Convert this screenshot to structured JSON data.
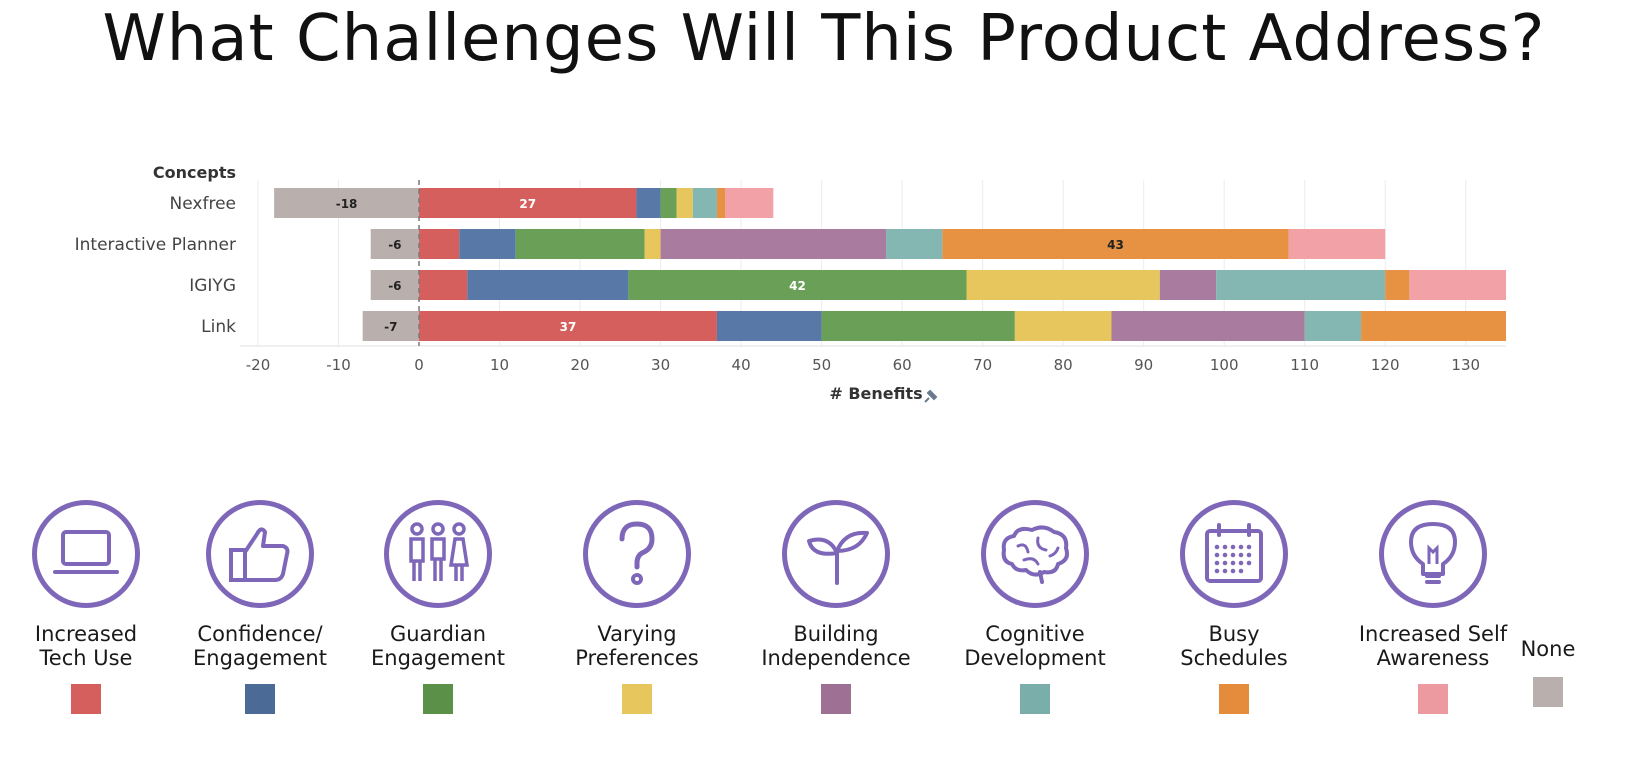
{
  "title": "What Challenges Will This Product Address?",
  "chart_data": {
    "type": "bar",
    "orientation": "horizontal",
    "stacked": true,
    "row_header": "Concepts",
    "xlabel": "# Benefits",
    "xlim": [
      -20,
      135
    ],
    "xticks": [
      -20,
      -10,
      0,
      10,
      20,
      30,
      40,
      50,
      60,
      70,
      80,
      90,
      100,
      110,
      120,
      130
    ],
    "grid": true,
    "categories": [
      "Nexfree",
      "Interactive Planner",
      "IGIYG",
      "Link"
    ],
    "series": [
      {
        "name": "Increased Tech Use",
        "color": "#d45f5c",
        "values": [
          27,
          5,
          6,
          37
        ]
      },
      {
        "name": "Confidence/ Engagement",
        "color": "#5878a8",
        "values": [
          3,
          7,
          20,
          13
        ]
      },
      {
        "name": "Guardian Engagement",
        "color": "#6a9f58",
        "values": [
          2,
          16,
          42,
          24
        ]
      },
      {
        "name": "Varying Preferences",
        "color": "#e8c65e",
        "values": [
          2,
          2,
          24,
          12
        ]
      },
      {
        "name": "Building Independence",
        "color": "#a97b9f",
        "values": [
          0,
          28,
          7,
          24
        ]
      },
      {
        "name": "Cognitive Development",
        "color": "#84b6b2",
        "values": [
          3,
          7,
          21,
          7
        ]
      },
      {
        "name": "Busy Schedules",
        "color": "#e69242",
        "values": [
          1,
          43,
          3,
          18
        ]
      },
      {
        "name": "Increased Self Awareness",
        "color": "#f2a1a6",
        "values": [
          6,
          12,
          12,
          0
        ]
      },
      {
        "name": "None",
        "color": "#b9b0ad",
        "values": [
          -18,
          -6,
          -6,
          -7
        ]
      }
    ],
    "data_labels": [
      {
        "category": "Nexfree",
        "series": "None",
        "text": "-18"
      },
      {
        "category": "Nexfree",
        "series": "Increased Tech Use",
        "text": "27"
      },
      {
        "category": "Interactive Planner",
        "series": "None",
        "text": "-6"
      },
      {
        "category": "Interactive Planner",
        "series": "Busy Schedules",
        "text": "43"
      },
      {
        "category": "IGIYG",
        "series": "None",
        "text": "-6"
      },
      {
        "category": "IGIYG",
        "series": "Guardian Engagement",
        "text": "42"
      },
      {
        "category": "Link",
        "series": "None",
        "text": "-7"
      },
      {
        "category": "Link",
        "series": "Increased Tech Use",
        "text": "37"
      }
    ]
  },
  "legend": [
    {
      "line1": "Increased",
      "line2": "Tech Use",
      "icon": "laptop-icon",
      "color": "#d45f5c"
    },
    {
      "line1": "Confidence/",
      "line2": "Engagement",
      "icon": "thumbs-up-icon",
      "color": "#4c6a96"
    },
    {
      "line1": "Guardian",
      "line2": "Engagement",
      "icon": "family-icon",
      "color": "#5a9048"
    },
    {
      "line1": "Varying",
      "line2": "Preferences",
      "icon": "question-mark-icon",
      "color": "#e8c65e"
    },
    {
      "line1": "Building",
      "line2": "Independence",
      "icon": "sprout-icon",
      "color": "#9e7094"
    },
    {
      "line1": "Cognitive",
      "line2": "Development",
      "icon": "brain-icon",
      "color": "#7aaeaa"
    },
    {
      "line1": "Busy",
      "line2": "Schedules",
      "icon": "calendar-icon",
      "color": "#e58b3c"
    },
    {
      "line1": "Increased Self",
      "line2": "Awareness",
      "icon": "lightbulb-icon",
      "color": "#ec9aa0"
    },
    {
      "line1": "None",
      "line2": "",
      "icon": "",
      "color": "#b9b0ad"
    }
  ],
  "icon_color": "#7e67b8"
}
